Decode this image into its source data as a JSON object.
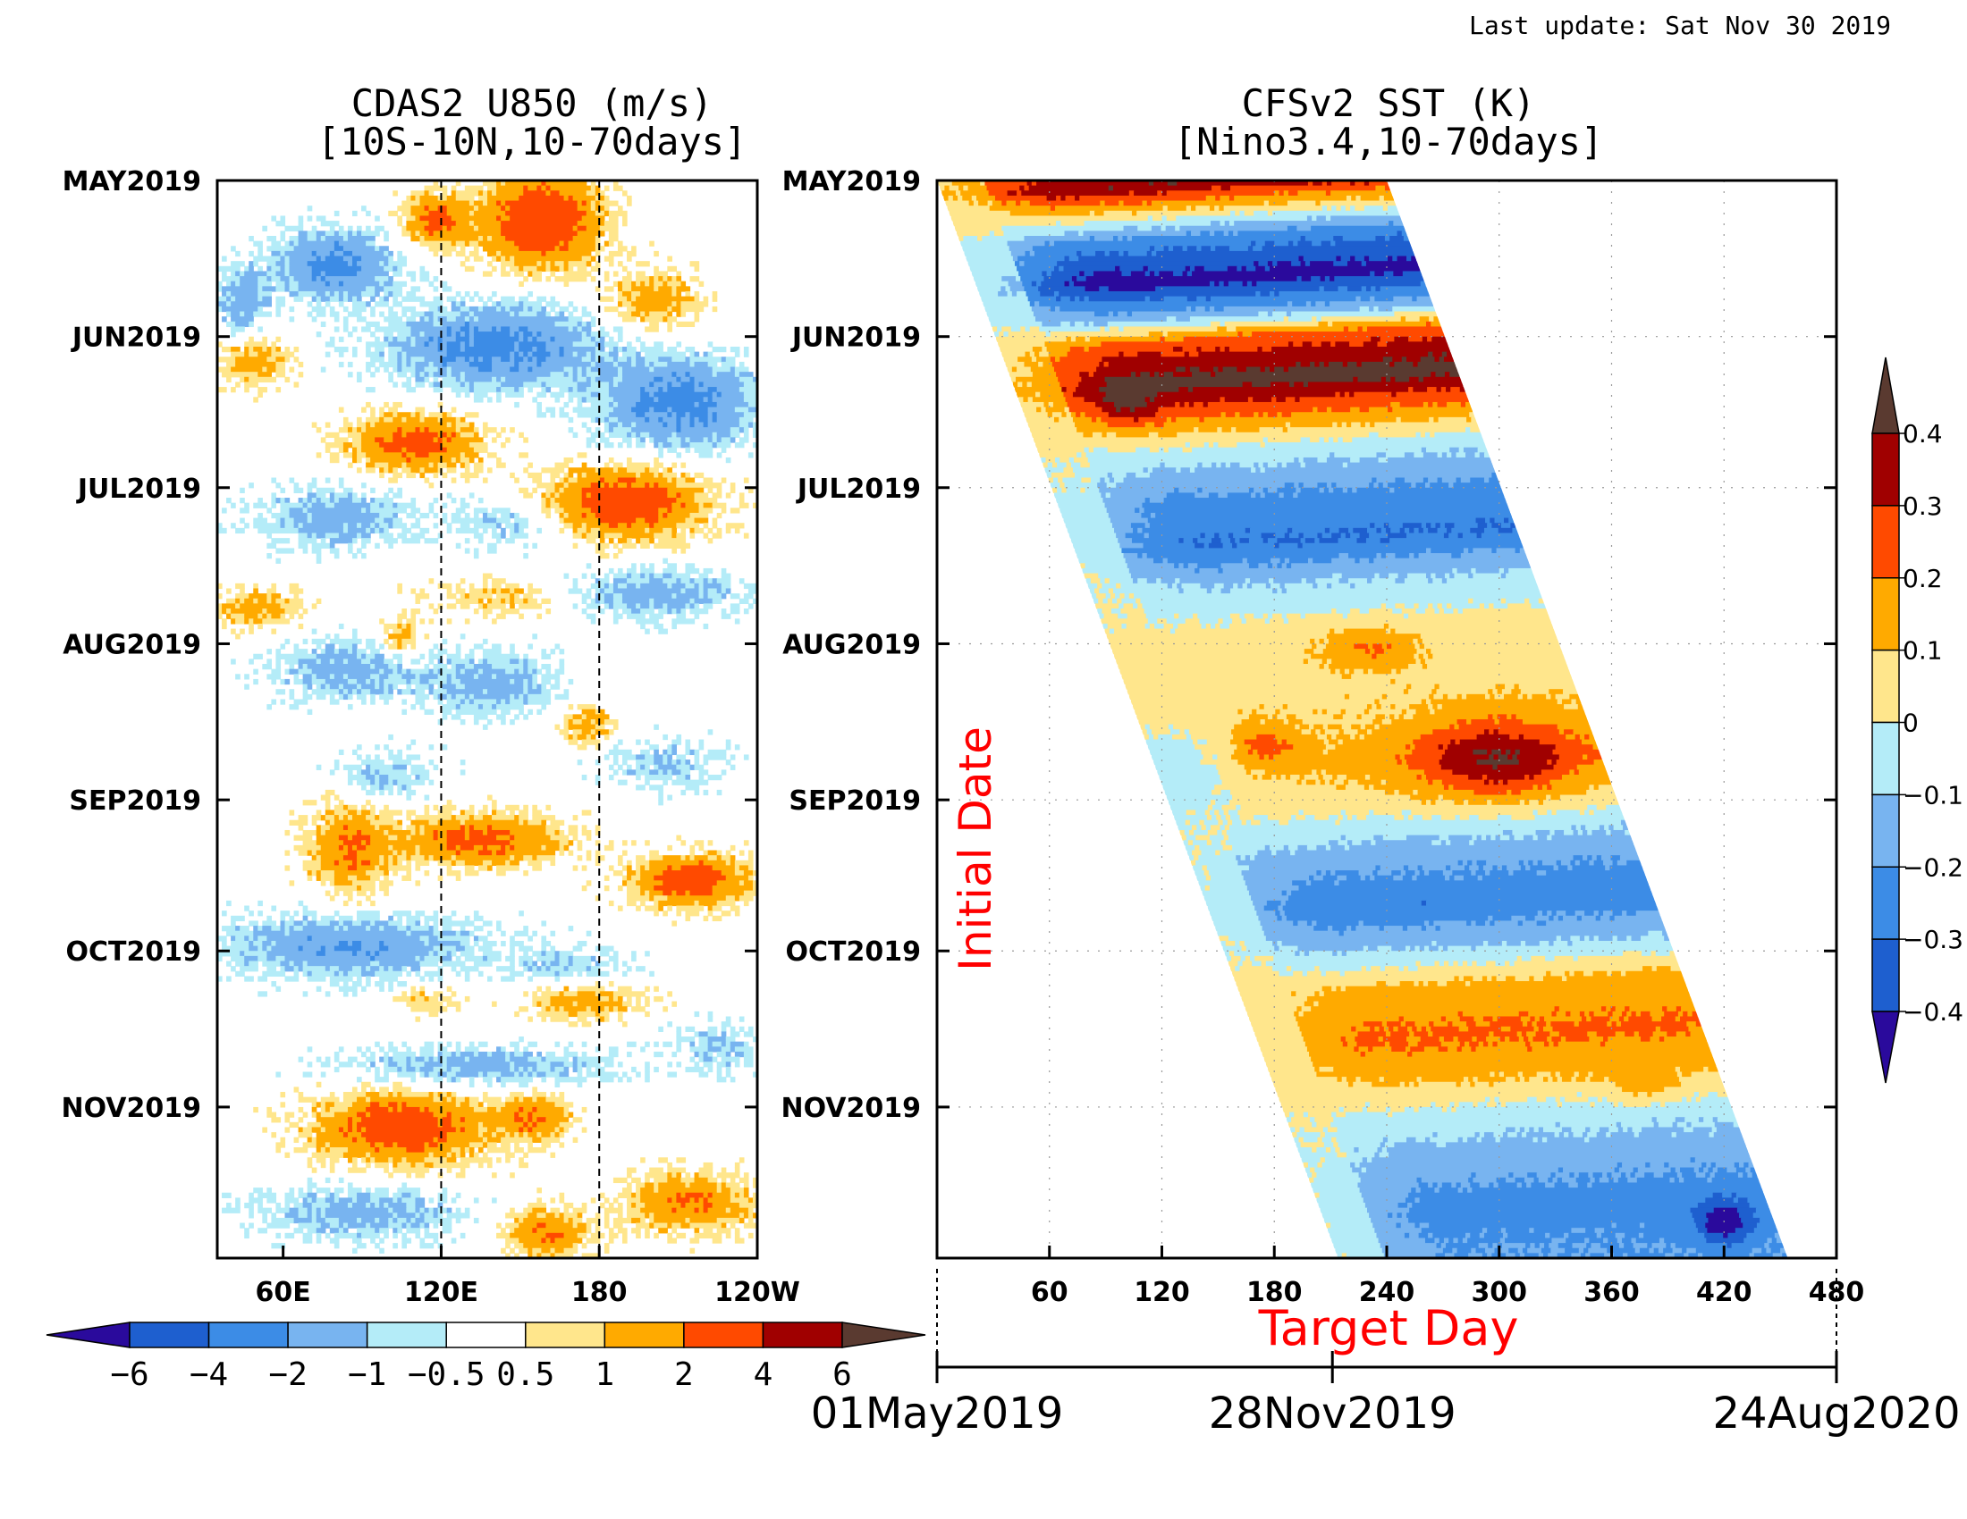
{
  "last_update": "Last update: Sat Nov 30 2019",
  "colors": {
    "scale": [
      "#2a0a9c",
      "#1e5fcf",
      "#3c8ce6",
      "#78b4f0",
      "#b4ecf8",
      "#ffffff",
      "#ffe68c",
      "#ffaa00",
      "#ff4a00",
      "#a00000",
      "#5a3a30"
    ],
    "sst_scale": [
      "#2a0a9c",
      "#1e5fcf",
      "#3c8ce6",
      "#78b4f0",
      "#b4ecf8",
      "#ffe68c",
      "#ffaa00",
      "#ff4a00",
      "#a00000",
      "#5a3a30"
    ],
    "dashed": "#000000",
    "red_label": "#ff0000"
  },
  "chart_data": [
    {
      "type": "heatmap",
      "title": "CDAS2 U850 (m/s)",
      "subtitle": "[10S-10N,10-70days]",
      "x_ticks": [
        "60E",
        "120E",
        "180",
        "120W"
      ],
      "x_tick_values": [
        60,
        120,
        180,
        240
      ],
      "xlim": [
        35,
        240
      ],
      "y_ticks": [
        "MAY2019",
        "JUN2019",
        "JUL2019",
        "AUG2019",
        "SEP2019",
        "OCT2019",
        "NOV2019"
      ],
      "y_tick_days": [
        0,
        31,
        61,
        92,
        123,
        153,
        184
      ],
      "ylim_days": [
        0,
        214
      ],
      "dashed_lines_lon": [
        120,
        180
      ],
      "colorbar_labels": [
        "-6",
        "-4",
        "-2",
        "-1",
        "-0.5",
        "0.5",
        "1",
        "2",
        "4",
        "6"
      ],
      "colorbar_levels": [
        -6,
        -4,
        -2,
        -1,
        -0.5,
        0.5,
        1,
        2,
        4,
        6
      ],
      "blobs": [
        {
          "lon": 158,
          "day": 8,
          "v": 3.5,
          "rl": 22,
          "rd": 9
        },
        {
          "lon": 118,
          "day": 8,
          "v": 2.5,
          "rl": 12,
          "rd": 5
        },
        {
          "lon": 200,
          "day": 24,
          "v": 1.5,
          "rl": 18,
          "rd": 6
        },
        {
          "lon": 80,
          "day": 17,
          "v": -2.5,
          "rl": 22,
          "rd": 7
        },
        {
          "lon": 45,
          "day": 24,
          "v": -1.5,
          "rl": 10,
          "rd": 7
        },
        {
          "lon": 140,
          "day": 33,
          "v": -2.5,
          "rl": 40,
          "rd": 8
        },
        {
          "lon": 210,
          "day": 44,
          "v": -2.5,
          "rl": 30,
          "rd": 9
        },
        {
          "lon": 50,
          "day": 36,
          "v": 1.5,
          "rl": 14,
          "rd": 5
        },
        {
          "lon": 110,
          "day": 52,
          "v": 2.5,
          "rl": 25,
          "rd": 6
        },
        {
          "lon": 190,
          "day": 64,
          "v": 3.0,
          "rl": 30,
          "rd": 7
        },
        {
          "lon": 80,
          "day": 67,
          "v": -1.5,
          "rl": 30,
          "rd": 6
        },
        {
          "lon": 145,
          "day": 68,
          "v": -1.0,
          "rl": 22,
          "rd": 5
        },
        {
          "lon": 50,
          "day": 85,
          "v": 1.5,
          "rl": 16,
          "rd": 4
        },
        {
          "lon": 145,
          "day": 83,
          "v": 1.0,
          "rl": 30,
          "rd": 4
        },
        {
          "lon": 200,
          "day": 82,
          "v": -1.5,
          "rl": 35,
          "rd": 5
        },
        {
          "lon": 85,
          "day": 97,
          "v": -1.5,
          "rl": 28,
          "rd": 6
        },
        {
          "lon": 140,
          "day": 100,
          "v": -1.5,
          "rl": 25,
          "rd": 6
        },
        {
          "lon": 105,
          "day": 91,
          "v": 1.5,
          "rl": 8,
          "rd": 4
        },
        {
          "lon": 175,
          "day": 108,
          "v": 1.5,
          "rl": 10,
          "rd": 4
        },
        {
          "lon": 100,
          "day": 118,
          "v": -1.0,
          "rl": 20,
          "rd": 5
        },
        {
          "lon": 205,
          "day": 116,
          "v": -1.0,
          "rl": 22,
          "rd": 5
        },
        {
          "lon": 85,
          "day": 133,
          "v": 2.0,
          "rl": 16,
          "rd": 9
        },
        {
          "lon": 135,
          "day": 131,
          "v": 2.5,
          "rl": 30,
          "rd": 5
        },
        {
          "lon": 215,
          "day": 139,
          "v": 3.0,
          "rl": 22,
          "rd": 5
        },
        {
          "lon": 85,
          "day": 152,
          "v": -2.0,
          "rl": 48,
          "rd": 6
        },
        {
          "lon": 170,
          "day": 156,
          "v": -1.0,
          "rl": 25,
          "rd": 4
        },
        {
          "lon": 175,
          "day": 163,
          "v": 1.5,
          "rl": 22,
          "rd": 4
        },
        {
          "lon": 115,
          "day": 163,
          "v": 1.0,
          "rl": 12,
          "rd": 3
        },
        {
          "lon": 135,
          "day": 176,
          "v": -1.5,
          "rl": 50,
          "rd": 4
        },
        {
          "lon": 225,
          "day": 172,
          "v": -1.0,
          "rl": 18,
          "rd": 5
        },
        {
          "lon": 105,
          "day": 188,
          "v": 3.0,
          "rl": 32,
          "rd": 7
        },
        {
          "lon": 155,
          "day": 186,
          "v": 2.0,
          "rl": 14,
          "rd": 5
        },
        {
          "lon": 215,
          "day": 203,
          "v": 2.0,
          "rl": 25,
          "rd": 6
        },
        {
          "lon": 90,
          "day": 205,
          "v": -1.5,
          "rl": 38,
          "rd": 5
        },
        {
          "lon": 160,
          "day": 209,
          "v": 2.0,
          "rl": 16,
          "rd": 5
        }
      ]
    },
    {
      "type": "heatmap",
      "title": "CFSv2 SST (K)",
      "subtitle": "[Nino3.4,10-70days]",
      "xlabel": "Target Day",
      "ylabel": "Initial Date",
      "x_ticks": [
        "60",
        "120",
        "180",
        "240",
        "300",
        "360",
        "420",
        "480"
      ],
      "x_tick_values": [
        60,
        120,
        180,
        240,
        300,
        360,
        420,
        480
      ],
      "xlim": [
        0,
        480
      ],
      "y_ticks": [
        "MAY2019",
        "JUN2019",
        "JUL2019",
        "AUG2019",
        "SEP2019",
        "OCT2019",
        "NOV2019"
      ],
      "y_tick_days": [
        0,
        31,
        61,
        92,
        123,
        153,
        184
      ],
      "ylim_days": [
        0,
        214
      ],
      "forecast_window_days": 240,
      "date_axis": [
        "01May2019",
        "28Nov2019",
        "24Aug2020"
      ],
      "date_axis_days": [
        0,
        211,
        481
      ],
      "colorbar_labels": [
        "-0.4",
        "-0.3",
        "-0.2",
        "-0.1",
        "0",
        "0.1",
        "0.2",
        "0.3",
        "0.4"
      ],
      "colorbar_levels": [
        -0.4,
        -0.3,
        -0.2,
        -0.1,
        0,
        0.1,
        0.2,
        0.3,
        0.4
      ],
      "band_levels": [
        {
          "day": 0,
          "v": 0.25
        },
        {
          "day": 3,
          "v": 0.4
        },
        {
          "day": 9,
          "v": 0.05
        },
        {
          "day": 14,
          "v": -0.25
        },
        {
          "day": 22,
          "v": -0.45
        },
        {
          "day": 29,
          "v": -0.15
        },
        {
          "day": 34,
          "v": 0.25
        },
        {
          "day": 42,
          "v": 0.45
        },
        {
          "day": 49,
          "v": 0.2
        },
        {
          "day": 56,
          "v": -0.05
        },
        {
          "day": 65,
          "v": -0.22
        },
        {
          "day": 74,
          "v": -0.3
        },
        {
          "day": 82,
          "v": -0.1
        },
        {
          "day": 92,
          "v": 0.05
        },
        {
          "day": 108,
          "v": 0.08
        },
        {
          "day": 118,
          "v": 0.12
        },
        {
          "day": 126,
          "v": 0.04
        },
        {
          "day": 136,
          "v": -0.15
        },
        {
          "day": 146,
          "v": -0.28
        },
        {
          "day": 154,
          "v": -0.12
        },
        {
          "day": 162,
          "v": 0.12
        },
        {
          "day": 172,
          "v": 0.22
        },
        {
          "day": 180,
          "v": 0.12
        },
        {
          "day": 188,
          "v": -0.05
        },
        {
          "day": 196,
          "v": -0.15
        },
        {
          "day": 206,
          "v": -0.25
        },
        {
          "day": 214,
          "v": -0.2
        }
      ],
      "blobs": [
        {
          "td": 300,
          "day": 115,
          "v": 0.3,
          "rt": 45,
          "rd": 8
        },
        {
          "td": 230,
          "day": 93,
          "v": 0.15,
          "rt": 25,
          "rd": 4
        },
        {
          "td": 175,
          "day": 112,
          "v": 0.15,
          "rt": 18,
          "rd": 4
        },
        {
          "td": 420,
          "day": 207,
          "v": -0.3,
          "rt": 15,
          "rd": 4
        },
        {
          "td": 100,
          "day": 45,
          "v": 0.15,
          "rt": 15,
          "rd": 4
        },
        {
          "td": 130,
          "day": 118,
          "v": -0.12,
          "rt": 30,
          "rd": 8
        },
        {
          "td": 380,
          "day": 180,
          "v": 0.12,
          "rt": 20,
          "rd": 3
        }
      ]
    }
  ]
}
